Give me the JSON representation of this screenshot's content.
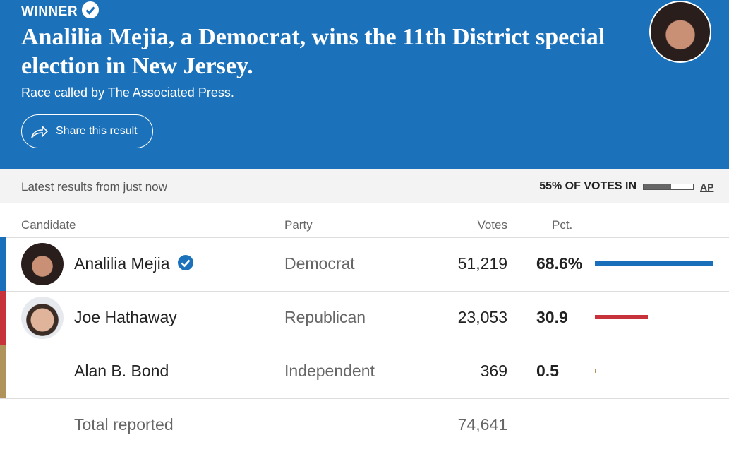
{
  "header": {
    "label": "WINNER",
    "title": "Analilia Mejia, a Democrat, wins the 11th District special election in New Jersey.",
    "subtitle": "Race called by The Associated Press.",
    "share": "Share this result"
  },
  "status": {
    "updated": "Latest results from just now",
    "votes_in": {
      "value": 55,
      "label": "55% OF VOTES IN"
    },
    "source": "AP"
  },
  "table": {
    "columns": [
      "Candidate",
      "Party",
      "Votes",
      "Pct."
    ],
    "rows": [
      {
        "name": "Analilia Mejia",
        "party": "Democrat",
        "votes": "51,219",
        "pct": {
          "value": 68.6,
          "label": "68.6%"
        },
        "color": "#1a6fba"
      },
      {
        "name": "Joe Hathaway",
        "party": "Republican",
        "votes": "23,053",
        "pct": 30.9,
        "color": "#c8333b"
      },
      {
        "name": "Alan B. Bond",
        "party": "Independent",
        "votes": "369",
        "pct": 0.5,
        "color": "#b0935a"
      }
    ],
    "total": {
      "label": "Total reported",
      "votes": "74,641"
    }
  }
}
